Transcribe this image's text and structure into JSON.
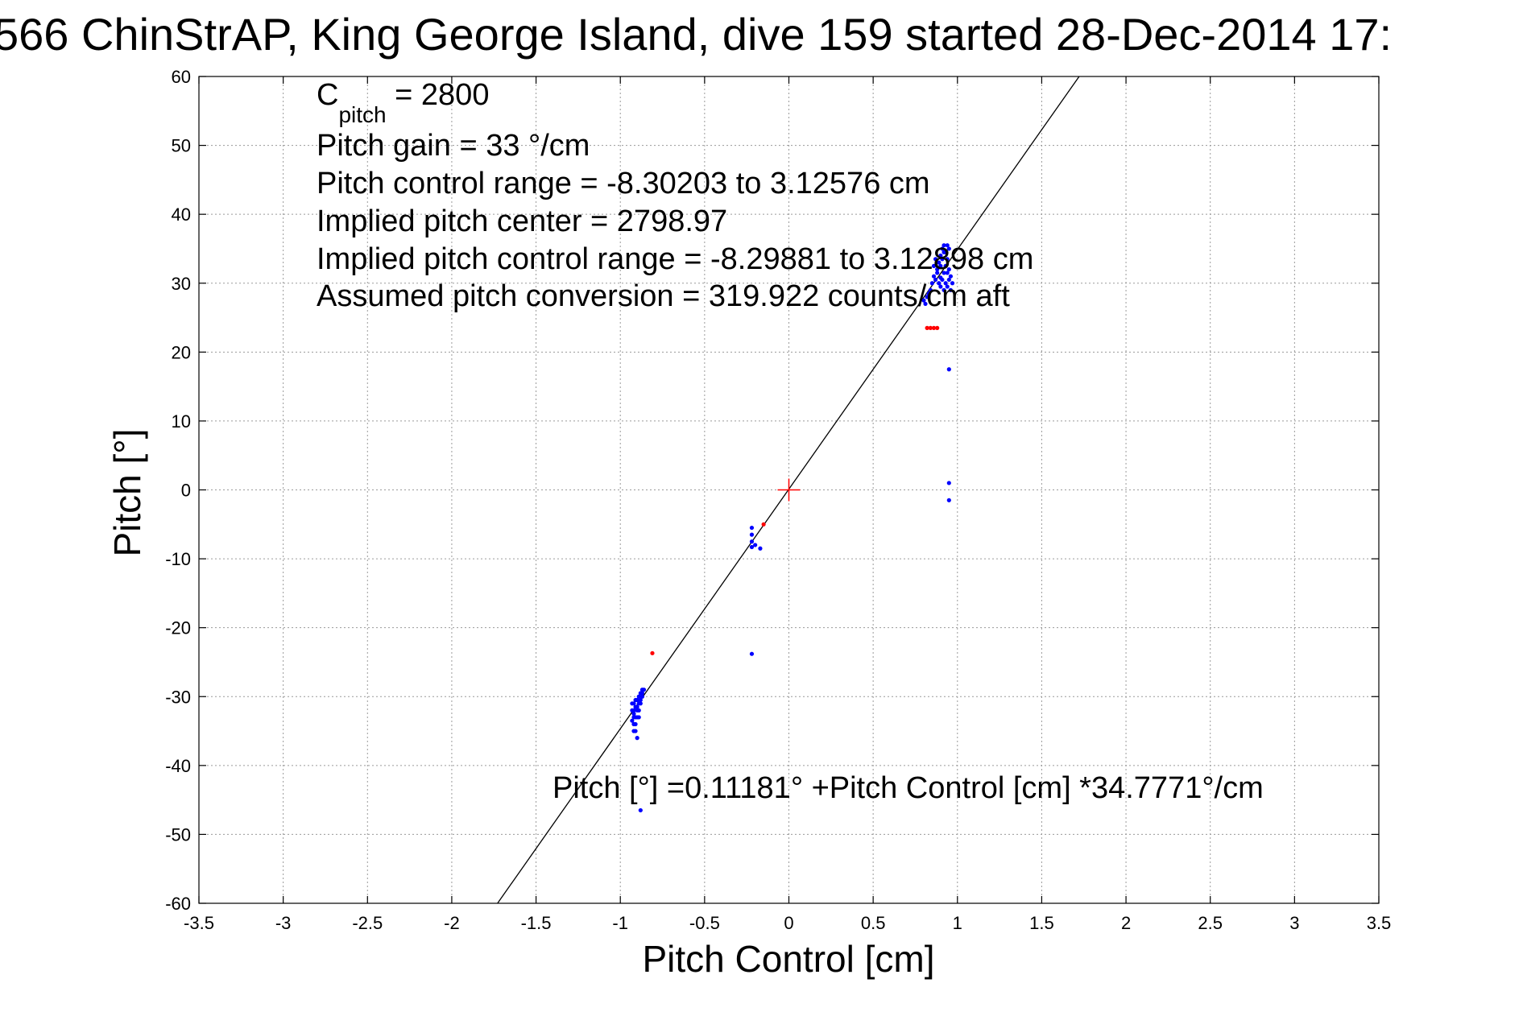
{
  "chart_data": {
    "type": "scatter",
    "title": "566 ChinStrAP, King George Island, dive 159 started 28-Dec-2014 17:",
    "xlabel": "Pitch Control [cm]",
    "ylabel": "Pitch [°]",
    "xlim": [
      -3.5,
      3.5
    ],
    "ylim": [
      -60,
      60
    ],
    "xticks": [
      -3.5,
      -3,
      -2.5,
      -2,
      -1.5,
      -1,
      -0.5,
      0,
      0.5,
      1,
      1.5,
      2,
      2.5,
      3,
      3.5
    ],
    "yticks": [
      -60,
      -50,
      -40,
      -30,
      -20,
      -10,
      0,
      10,
      20,
      30,
      40,
      50,
      60
    ],
    "xtick_labels": [
      "-3.5",
      "-3",
      "-2.5",
      "-2",
      "-1.5",
      "-1",
      "-0.5",
      "0",
      "0.5",
      "1",
      "1.5",
      "2",
      "2.5",
      "3",
      "3.5"
    ],
    "ytick_labels": [
      "-60",
      "-50",
      "-40",
      "-30",
      "-20",
      "-10",
      "0",
      "10",
      "20",
      "30",
      "40",
      "50",
      "60"
    ],
    "grid": true,
    "colors": {
      "used": "#0000ff",
      "excluded": "#ff0000",
      "fit": "#000000",
      "center": "#ff0000"
    },
    "fit_line": {
      "intercept": 0.11181,
      "slope": 34.7771
    },
    "center_marker": {
      "x": 0,
      "y": 0
    },
    "series": [
      {
        "points": [
          [
            -0.93,
            -31
          ],
          [
            -0.92,
            -32
          ],
          [
            -0.91,
            -33
          ],
          [
            -0.92,
            -34
          ],
          [
            -0.91,
            -35
          ],
          [
            -0.9,
            -36
          ],
          [
            -0.93,
            -33.5
          ],
          [
            -0.92,
            -32.5
          ],
          [
            -0.91,
            -31.5
          ],
          [
            -0.9,
            -32
          ],
          [
            -0.89,
            -31
          ],
          [
            -0.9,
            -30.5
          ],
          [
            -0.89,
            -30
          ],
          [
            -0.88,
            -29.5
          ],
          [
            -0.88,
            -30.5
          ],
          [
            -0.87,
            -29.5
          ],
          [
            -0.87,
            -29
          ],
          [
            -0.86,
            -29
          ],
          [
            -0.89,
            -32
          ],
          [
            -0.9,
            -33
          ],
          [
            -0.91,
            -34
          ],
          [
            -0.92,
            -35
          ],
          [
            -0.88,
            -31
          ],
          [
            -0.87,
            -30
          ],
          [
            -0.93,
            -32
          ],
          [
            -0.92,
            -31
          ],
          [
            -0.91,
            -30.5
          ],
          [
            -0.9,
            -31.5
          ],
          [
            -0.89,
            -33
          ],
          [
            -0.92,
            -33
          ],
          [
            -0.88,
            -46.5
          ],
          [
            -0.22,
            -5.5
          ],
          [
            -0.22,
            -6.5
          ],
          [
            -0.22,
            -7.5
          ],
          [
            -0.22,
            -8.3
          ],
          [
            -0.2,
            -8.0
          ],
          [
            -0.17,
            -8.5
          ],
          [
            -0.22,
            -23.8
          ],
          [
            0.8,
            27.5
          ],
          [
            0.82,
            28.0
          ],
          [
            0.84,
            29.0
          ],
          [
            0.85,
            30.0
          ],
          [
            0.86,
            31.0
          ],
          [
            0.87,
            30.5
          ],
          [
            0.88,
            32.0
          ],
          [
            0.89,
            33.0
          ],
          [
            0.9,
            34.0
          ],
          [
            0.91,
            35.0
          ],
          [
            0.92,
            35.5
          ],
          [
            0.93,
            34.5
          ],
          [
            0.94,
            33.5
          ],
          [
            0.95,
            35.0
          ],
          [
            0.9,
            29.5
          ],
          [
            0.91,
            30.5
          ],
          [
            0.92,
            31.5
          ],
          [
            0.93,
            30.0
          ],
          [
            0.94,
            29.5
          ],
          [
            0.95,
            30.5
          ],
          [
            0.96,
            31.0
          ],
          [
            0.97,
            30.0
          ],
          [
            0.88,
            31.5
          ],
          [
            0.89,
            30.0
          ],
          [
            0.9,
            32.5
          ],
          [
            0.91,
            33.5
          ],
          [
            0.92,
            34.5
          ],
          [
            0.93,
            32.5
          ],
          [
            0.94,
            31.5
          ],
          [
            0.95,
            32.0
          ],
          [
            0.83,
            28.5
          ],
          [
            0.81,
            27.0
          ],
          [
            0.86,
            32.5
          ],
          [
            0.87,
            33.5
          ],
          [
            0.96,
            29.0
          ],
          [
            0.92,
            29.0
          ],
          [
            0.94,
            35.5
          ],
          [
            0.9,
            30.8
          ],
          [
            0.95,
            17.5
          ],
          [
            0.95,
            1.0
          ],
          [
            0.95,
            -1.5
          ]
        ]
      },
      {
        "points": [
          [
            -0.81,
            -23.7
          ],
          [
            -0.15,
            -5.0
          ],
          [
            0.82,
            23.5
          ],
          [
            0.84,
            23.5
          ],
          [
            0.86,
            23.5
          ],
          [
            0.88,
            23.5
          ]
        ]
      }
    ],
    "annotations": {
      "c_pitch_main": "C",
      "c_pitch_sub": "pitch",
      "c_pitch_value": " = 2800",
      "pitch_gain": "Pitch gain = 33 °/cm",
      "control_range": "Pitch control range = -8.30203 to 3.12576 cm",
      "implied_center": "Implied pitch center = 2798.97",
      "implied_range": "Implied pitch control range = -8.29881 to 3.12898 cm",
      "conversion": "Assumed pitch conversion = 319.922 counts/cm aft",
      "fit_equation": "Pitch [°] =0.11181° +Pitch Control [cm] *34.7771°/cm"
    }
  }
}
